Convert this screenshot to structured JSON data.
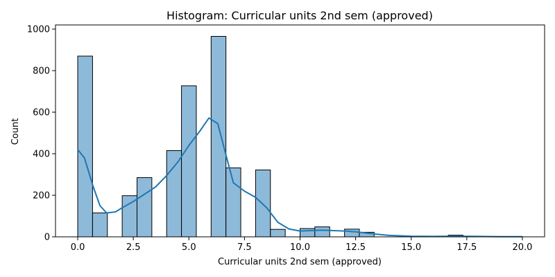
{
  "chart_data": {
    "type": "histogram",
    "title": "Histogram: Curricular units 2nd sem (approved)",
    "xlabel": "Curricular units 2nd sem (approved)",
    "ylabel": "Count",
    "xlim": [
      -1,
      21
    ],
    "ylim": [
      0,
      1020
    ],
    "x_ticks": [
      0,
      2.5,
      5,
      7.5,
      10,
      12.5,
      15,
      17.5,
      20
    ],
    "x_tick_labels": [
      "0.0",
      "2.5",
      "5.0",
      "7.5",
      "10.0",
      "12.5",
      "15.0",
      "17.5",
      "20.0"
    ],
    "y_ticks": [
      0,
      200,
      400,
      600,
      800,
      1000
    ],
    "y_tick_labels": [
      "0",
      "200",
      "400",
      "600",
      "800",
      "1000"
    ],
    "bin_width": 0.6667,
    "bins": [
      {
        "x0": 0.0,
        "count": 870
      },
      {
        "x0": 0.6667,
        "count": 115
      },
      {
        "x0": 2.0,
        "count": 198
      },
      {
        "x0": 2.6667,
        "count": 285
      },
      {
        "x0": 4.0,
        "count": 415
      },
      {
        "x0": 4.6667,
        "count": 727
      },
      {
        "x0": 6.0,
        "count": 965
      },
      {
        "x0": 6.6667,
        "count": 332
      },
      {
        "x0": 8.0,
        "count": 322
      },
      {
        "x0": 8.6667,
        "count": 36
      },
      {
        "x0": 10.0,
        "count": 40
      },
      {
        "x0": 10.6667,
        "count": 48
      },
      {
        "x0": 12.0,
        "count": 37
      },
      {
        "x0": 12.6667,
        "count": 22
      },
      {
        "x0": 16.6667,
        "count": 8
      }
    ],
    "kde": {
      "x": [
        0,
        0.3,
        0.7,
        1.0,
        1.3,
        1.7,
        2.0,
        2.5,
        3.0,
        3.5,
        4.0,
        4.5,
        5.0,
        5.5,
        5.9,
        6.3,
        6.7,
        7.0,
        7.5,
        8.0,
        8.5,
        9.0,
        9.5,
        10.0,
        10.5,
        11.0,
        11.5,
        12.0,
        12.5,
        13.0,
        13.5,
        14.0,
        15.0,
        16.0,
        17.0,
        18.0,
        19.0,
        20.0
      ],
      "y": [
        420,
        380,
        240,
        150,
        115,
        120,
        140,
        170,
        205,
        240,
        295,
        360,
        440,
        510,
        572,
        545,
        380,
        260,
        220,
        190,
        140,
        70,
        38,
        28,
        30,
        32,
        30,
        28,
        24,
        18,
        12,
        7,
        3,
        2,
        3,
        2,
        1,
        1
      ]
    },
    "colors": {
      "bar_fill": "#8ebad9",
      "bar_edge": "#000000",
      "kde_line": "#1f77b4"
    },
    "grid": false,
    "legend": "none"
  }
}
